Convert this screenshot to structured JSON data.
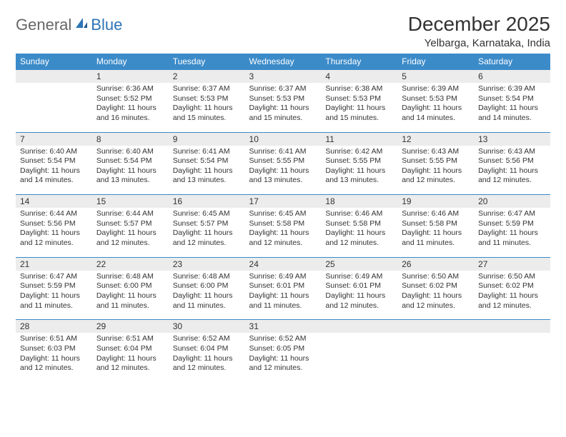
{
  "logo": {
    "word1": "General",
    "word2": "Blue"
  },
  "title": "December 2025",
  "location": "Yelbarga, Karnataka, India",
  "weekdays": [
    "Sunday",
    "Monday",
    "Tuesday",
    "Wednesday",
    "Thursday",
    "Friday",
    "Saturday"
  ],
  "colors": {
    "header_bg": "#3b8bc9",
    "header_text": "#ffffff",
    "daynum_bg": "#ececec",
    "rule": "#3b8bc9",
    "logo_gray": "#666666",
    "logo_blue": "#2e75b6"
  },
  "weeks": [
    [
      {
        "n": "",
        "lines": []
      },
      {
        "n": "1",
        "lines": [
          "Sunrise: 6:36 AM",
          "Sunset: 5:52 PM",
          "Daylight: 11 hours",
          "and 16 minutes."
        ]
      },
      {
        "n": "2",
        "lines": [
          "Sunrise: 6:37 AM",
          "Sunset: 5:53 PM",
          "Daylight: 11 hours",
          "and 15 minutes."
        ]
      },
      {
        "n": "3",
        "lines": [
          "Sunrise: 6:37 AM",
          "Sunset: 5:53 PM",
          "Daylight: 11 hours",
          "and 15 minutes."
        ]
      },
      {
        "n": "4",
        "lines": [
          "Sunrise: 6:38 AM",
          "Sunset: 5:53 PM",
          "Daylight: 11 hours",
          "and 15 minutes."
        ]
      },
      {
        "n": "5",
        "lines": [
          "Sunrise: 6:39 AM",
          "Sunset: 5:53 PM",
          "Daylight: 11 hours",
          "and 14 minutes."
        ]
      },
      {
        "n": "6",
        "lines": [
          "Sunrise: 6:39 AM",
          "Sunset: 5:54 PM",
          "Daylight: 11 hours",
          "and 14 minutes."
        ]
      }
    ],
    [
      {
        "n": "7",
        "lines": [
          "Sunrise: 6:40 AM",
          "Sunset: 5:54 PM",
          "Daylight: 11 hours",
          "and 14 minutes."
        ]
      },
      {
        "n": "8",
        "lines": [
          "Sunrise: 6:40 AM",
          "Sunset: 5:54 PM",
          "Daylight: 11 hours",
          "and 13 minutes."
        ]
      },
      {
        "n": "9",
        "lines": [
          "Sunrise: 6:41 AM",
          "Sunset: 5:54 PM",
          "Daylight: 11 hours",
          "and 13 minutes."
        ]
      },
      {
        "n": "10",
        "lines": [
          "Sunrise: 6:41 AM",
          "Sunset: 5:55 PM",
          "Daylight: 11 hours",
          "and 13 minutes."
        ]
      },
      {
        "n": "11",
        "lines": [
          "Sunrise: 6:42 AM",
          "Sunset: 5:55 PM",
          "Daylight: 11 hours",
          "and 13 minutes."
        ]
      },
      {
        "n": "12",
        "lines": [
          "Sunrise: 6:43 AM",
          "Sunset: 5:55 PM",
          "Daylight: 11 hours",
          "and 12 minutes."
        ]
      },
      {
        "n": "13",
        "lines": [
          "Sunrise: 6:43 AM",
          "Sunset: 5:56 PM",
          "Daylight: 11 hours",
          "and 12 minutes."
        ]
      }
    ],
    [
      {
        "n": "14",
        "lines": [
          "Sunrise: 6:44 AM",
          "Sunset: 5:56 PM",
          "Daylight: 11 hours",
          "and 12 minutes."
        ]
      },
      {
        "n": "15",
        "lines": [
          "Sunrise: 6:44 AM",
          "Sunset: 5:57 PM",
          "Daylight: 11 hours",
          "and 12 minutes."
        ]
      },
      {
        "n": "16",
        "lines": [
          "Sunrise: 6:45 AM",
          "Sunset: 5:57 PM",
          "Daylight: 11 hours",
          "and 12 minutes."
        ]
      },
      {
        "n": "17",
        "lines": [
          "Sunrise: 6:45 AM",
          "Sunset: 5:58 PM",
          "Daylight: 11 hours",
          "and 12 minutes."
        ]
      },
      {
        "n": "18",
        "lines": [
          "Sunrise: 6:46 AM",
          "Sunset: 5:58 PM",
          "Daylight: 11 hours",
          "and 12 minutes."
        ]
      },
      {
        "n": "19",
        "lines": [
          "Sunrise: 6:46 AM",
          "Sunset: 5:58 PM",
          "Daylight: 11 hours",
          "and 11 minutes."
        ]
      },
      {
        "n": "20",
        "lines": [
          "Sunrise: 6:47 AM",
          "Sunset: 5:59 PM",
          "Daylight: 11 hours",
          "and 11 minutes."
        ]
      }
    ],
    [
      {
        "n": "21",
        "lines": [
          "Sunrise: 6:47 AM",
          "Sunset: 5:59 PM",
          "Daylight: 11 hours",
          "and 11 minutes."
        ]
      },
      {
        "n": "22",
        "lines": [
          "Sunrise: 6:48 AM",
          "Sunset: 6:00 PM",
          "Daylight: 11 hours",
          "and 11 minutes."
        ]
      },
      {
        "n": "23",
        "lines": [
          "Sunrise: 6:48 AM",
          "Sunset: 6:00 PM",
          "Daylight: 11 hours",
          "and 11 minutes."
        ]
      },
      {
        "n": "24",
        "lines": [
          "Sunrise: 6:49 AM",
          "Sunset: 6:01 PM",
          "Daylight: 11 hours",
          "and 11 minutes."
        ]
      },
      {
        "n": "25",
        "lines": [
          "Sunrise: 6:49 AM",
          "Sunset: 6:01 PM",
          "Daylight: 11 hours",
          "and 12 minutes."
        ]
      },
      {
        "n": "26",
        "lines": [
          "Sunrise: 6:50 AM",
          "Sunset: 6:02 PM",
          "Daylight: 11 hours",
          "and 12 minutes."
        ]
      },
      {
        "n": "27",
        "lines": [
          "Sunrise: 6:50 AM",
          "Sunset: 6:02 PM",
          "Daylight: 11 hours",
          "and 12 minutes."
        ]
      }
    ],
    [
      {
        "n": "28",
        "lines": [
          "Sunrise: 6:51 AM",
          "Sunset: 6:03 PM",
          "Daylight: 11 hours",
          "and 12 minutes."
        ]
      },
      {
        "n": "29",
        "lines": [
          "Sunrise: 6:51 AM",
          "Sunset: 6:04 PM",
          "Daylight: 11 hours",
          "and 12 minutes."
        ]
      },
      {
        "n": "30",
        "lines": [
          "Sunrise: 6:52 AM",
          "Sunset: 6:04 PM",
          "Daylight: 11 hours",
          "and 12 minutes."
        ]
      },
      {
        "n": "31",
        "lines": [
          "Sunrise: 6:52 AM",
          "Sunset: 6:05 PM",
          "Daylight: 11 hours",
          "and 12 minutes."
        ]
      },
      {
        "n": "",
        "lines": []
      },
      {
        "n": "",
        "lines": []
      },
      {
        "n": "",
        "lines": []
      }
    ]
  ]
}
